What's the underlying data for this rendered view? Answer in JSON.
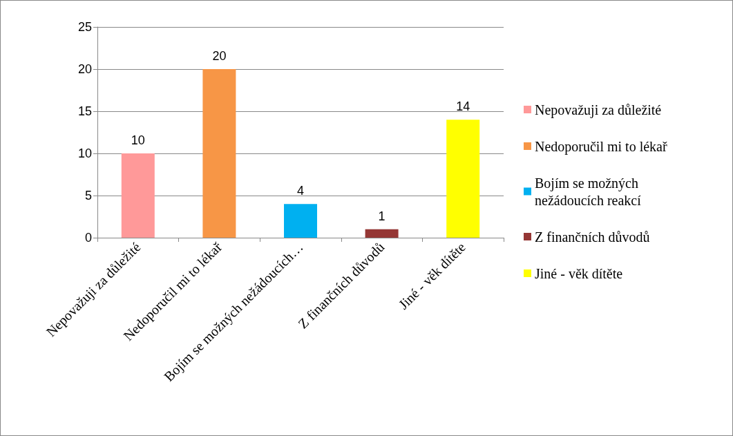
{
  "chart_data": {
    "type": "bar",
    "categories": [
      "Nepovažuji za důležité",
      "Nedoporučil mi to lékař",
      "Bojím se možných nežádoucích…",
      "Z finančních důvodů",
      "Jiné - věk dítěte"
    ],
    "series": [
      {
        "name": "Nepovažuji za důležité",
        "color": "#ff9999",
        "values": [
          10,
          null,
          null,
          null,
          null
        ]
      },
      {
        "name": "Nedoporučil mi to lékař",
        "color": "#f79646",
        "values": [
          null,
          20,
          null,
          null,
          null
        ]
      },
      {
        "name": "Bojím se možných nežádoucích reakcí",
        "color": "#00b0f0",
        "values": [
          null,
          null,
          4,
          null,
          null
        ]
      },
      {
        "name": "Z finančních důvodů",
        "color": "#953735",
        "values": [
          null,
          null,
          null,
          1,
          null
        ]
      },
      {
        "name": "Jiné - věk dítěte",
        "color": "#ffff00",
        "values": [
          null,
          null,
          null,
          null,
          14
        ]
      }
    ],
    "ylim": [
      0,
      25
    ],
    "yticks": [
      0,
      5,
      10,
      15,
      20,
      25
    ],
    "grid": "y",
    "legend": "right",
    "data_labels": true
  }
}
